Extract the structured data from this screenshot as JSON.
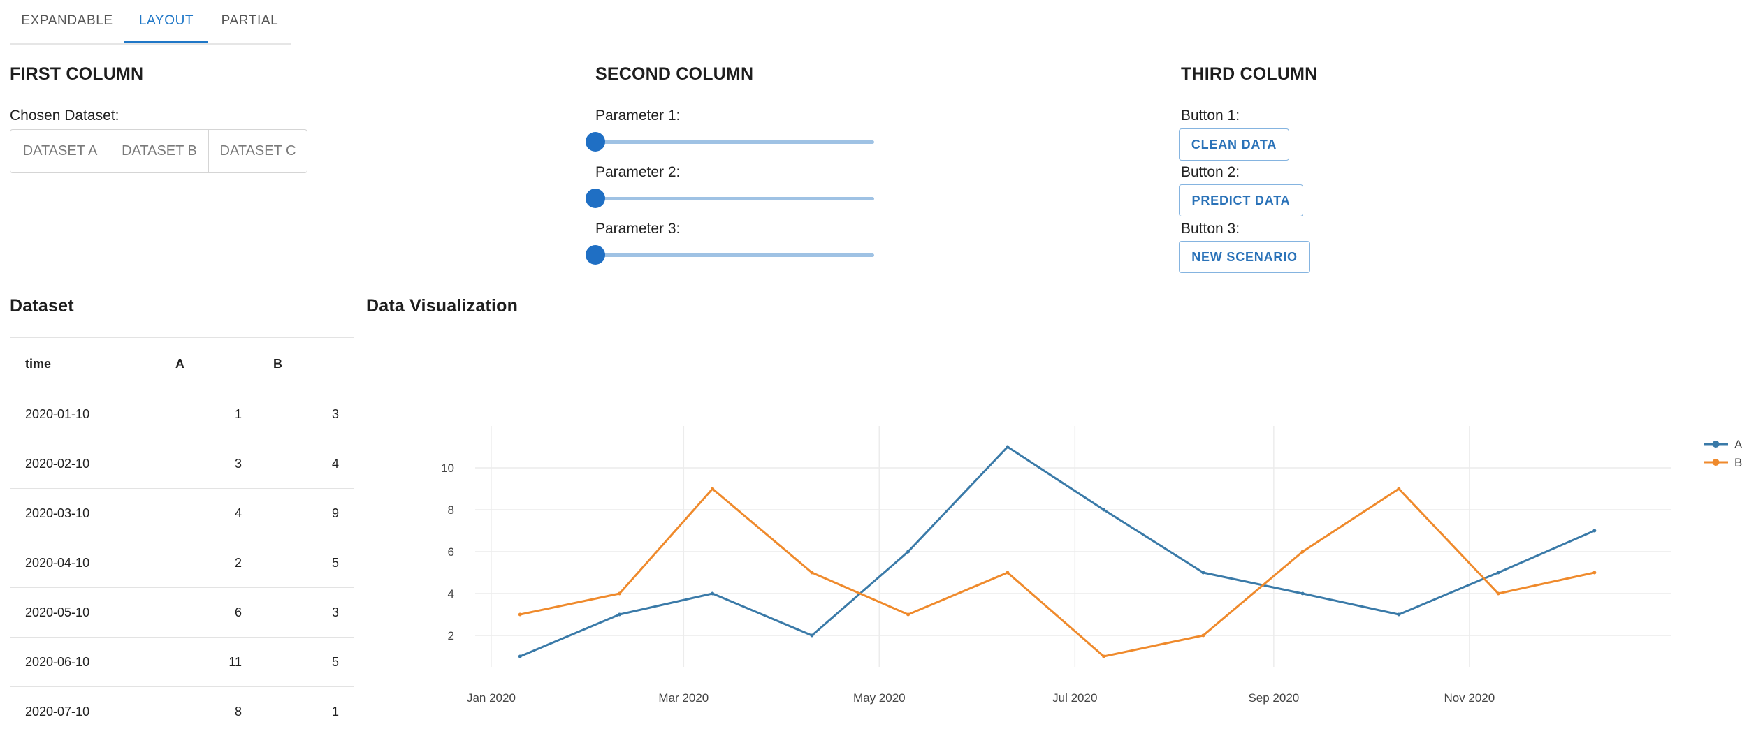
{
  "tabs": [
    {
      "label": "EXPANDABLE"
    },
    {
      "label": "LAYOUT"
    },
    {
      "label": "PARTIAL"
    }
  ],
  "first_column": {
    "title": "FIRST COLUMN",
    "dataset_label": "Chosen Dataset:",
    "datasets": [
      "DATASET A",
      "DATASET B",
      "DATASET C"
    ]
  },
  "second_column": {
    "title": "SECOND COLUMN",
    "params": [
      {
        "label": "Parameter 1:",
        "value": 0
      },
      {
        "label": "Parameter 2:",
        "value": 0
      },
      {
        "label": "Parameter 3:",
        "value": 0
      }
    ]
  },
  "third_column": {
    "title": "THIRD COLUMN",
    "buttons": [
      {
        "label": "Button 1:",
        "text": "CLEAN DATA"
      },
      {
        "label": "Button 2:",
        "text": "PREDICT DATA"
      },
      {
        "label": "Button 3:",
        "text": "NEW SCENARIO"
      }
    ]
  },
  "dataset": {
    "title": "Dataset",
    "columns": [
      "time",
      "A",
      "B"
    ],
    "rows": [
      [
        "2020-01-10",
        "1",
        "3"
      ],
      [
        "2020-02-10",
        "3",
        "4"
      ],
      [
        "2020-03-10",
        "4",
        "9"
      ],
      [
        "2020-04-10",
        "2",
        "5"
      ],
      [
        "2020-05-10",
        "6",
        "3"
      ],
      [
        "2020-06-10",
        "11",
        "5"
      ],
      [
        "2020-07-10",
        "8",
        "1"
      ]
    ]
  },
  "visualization": {
    "title": "Data Visualization"
  },
  "colors": {
    "accent": "#1f77c7",
    "series_a": "#3a7aa8",
    "series_b": "#ef8a2c"
  },
  "chart_data": {
    "type": "line",
    "title": "",
    "xlabel": "",
    "ylabel": "",
    "x": [
      "2020-01-10",
      "2020-02-10",
      "2020-03-10",
      "2020-04-10",
      "2020-05-10",
      "2020-06-10",
      "2020-07-10",
      "2020-08-10",
      "2020-09-10",
      "2020-10-10",
      "2020-11-10",
      "2020-12-10"
    ],
    "series": [
      {
        "name": "A",
        "values": [
          1,
          3,
          4,
          2,
          6,
          11,
          8,
          5,
          4,
          3,
          5,
          7
        ]
      },
      {
        "name": "B",
        "values": [
          3,
          4,
          9,
          5,
          3,
          5,
          1,
          2,
          6,
          9,
          4,
          5
        ]
      }
    ],
    "xticks": [
      "Jan 2020",
      "Mar 2020",
      "May 2020",
      "Jul 2020",
      "Sep 2020",
      "Nov 2020"
    ],
    "xtick_dates": [
      "2020-01-01",
      "2020-03-01",
      "2020-05-01",
      "2020-07-01",
      "2020-09-01",
      "2020-11-01"
    ],
    "yticks": [
      2,
      4,
      6,
      8,
      10
    ],
    "ylim": [
      0.5,
      12
    ],
    "xlim": [
      "2019-12-27",
      "2021-01-03"
    ],
    "legend": "top-right",
    "grid": true
  }
}
